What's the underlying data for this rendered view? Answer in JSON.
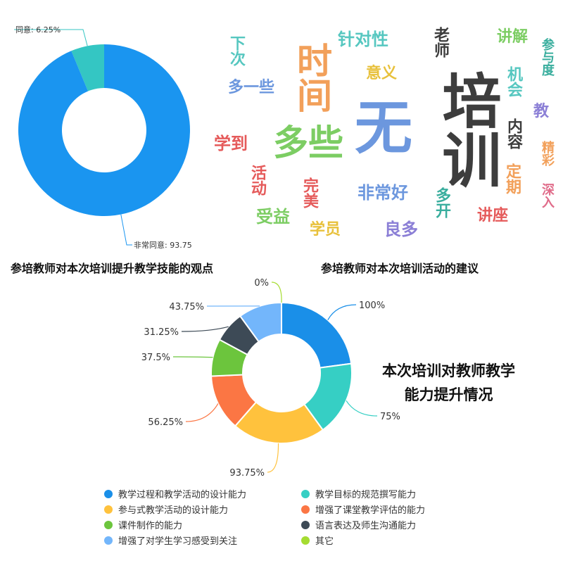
{
  "chart_data": [
    {
      "type": "pie",
      "style": "donut",
      "title": "参培教师对本次培训提升教学技能的观点",
      "slices": [
        {
          "label": "同意",
          "value": 6.25,
          "display": "同意: 6.25%",
          "color": "#34c6c3"
        },
        {
          "label": "非常同意",
          "value": 93.75,
          "display": "非常同意: 93.75",
          "color": "#1a95f0"
        }
      ]
    },
    {
      "type": "wordcloud",
      "title": "参培教师对本次培训活动的建议",
      "words": [
        {
          "text": "培训",
          "color": "#3d3d3d"
        },
        {
          "text": "无",
          "color": "#6c97de"
        },
        {
          "text": "多些",
          "color": "#7ccd63"
        },
        {
          "text": "时间",
          "color": "#f2a05a"
        },
        {
          "text": "针对性",
          "color": "#56c7c0"
        },
        {
          "text": "老师",
          "color": "#3d3d3d"
        },
        {
          "text": "讲解",
          "color": "#7ccd63"
        },
        {
          "text": "下次",
          "color": "#56c7c0"
        },
        {
          "text": "多一些",
          "color": "#6c97de"
        },
        {
          "text": "意义",
          "color": "#e8c13c"
        },
        {
          "text": "参与度",
          "color": "#3aae9e"
        },
        {
          "text": "机会",
          "color": "#56c7c0"
        },
        {
          "text": "教",
          "color": "#8b7fd6"
        },
        {
          "text": "内容",
          "color": "#3d3d3d"
        },
        {
          "text": "学到",
          "color": "#e55a5a"
        },
        {
          "text": "精彩",
          "color": "#f2a05a"
        },
        {
          "text": "活动",
          "color": "#e55a5a"
        },
        {
          "text": "定期",
          "color": "#f2a05a"
        },
        {
          "text": "完美",
          "color": "#e55a5a"
        },
        {
          "text": "非常好",
          "color": "#6c97de"
        },
        {
          "text": "深入",
          "color": "#e06c8a"
        },
        {
          "text": "多开",
          "color": "#3aae9e"
        },
        {
          "text": "受益",
          "color": "#7ccd63"
        },
        {
          "text": "学员",
          "color": "#e8c13c"
        },
        {
          "text": "良多",
          "color": "#8b7fd6"
        },
        {
          "text": "讲座",
          "color": "#e55a5a"
        }
      ]
    },
    {
      "type": "pie",
      "style": "donut",
      "title": "本次培训对教师教学能力提升情况",
      "title_lines": [
        "本次培训对教师教学",
        "能力提升情况"
      ],
      "series": [
        {
          "name": "教学过程和教学活动的设计能力",
          "value": 100,
          "display": "100%",
          "color": "#1a8fe8"
        },
        {
          "name": "教学目标的规范撰写能力",
          "value": 75,
          "display": "75%",
          "color": "#36cfc4"
        },
        {
          "name": "参与式教学活动的设计能力",
          "value": 93.75,
          "display": "93.75%",
          "color": "#ffc23d"
        },
        {
          "name": "增强了课堂教学评估的能力",
          "value": 56.25,
          "display": "56.25%",
          "color": "#fb7644"
        },
        {
          "name": "课件制作的能力",
          "value": 37.5,
          "display": "37.5%",
          "color": "#6cc53d"
        },
        {
          "name": "语言表达及师生沟通能力",
          "value": 31.25,
          "display": "31.25%",
          "color": "#3d4a56"
        },
        {
          "name": "增强了对学生学习感受到关注",
          "value": 43.75,
          "display": "43.75%",
          "color": "#73b6fb"
        },
        {
          "name": "其它",
          "value": 0,
          "display": "0%",
          "color": "#a5dc31"
        }
      ],
      "legend_placement": "bottom"
    }
  ]
}
